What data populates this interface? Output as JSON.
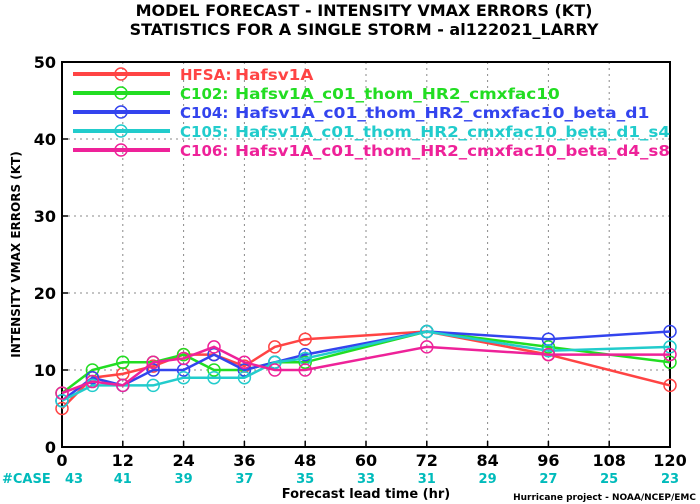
{
  "title_line1": "MODEL FORECAST - INTENSITY VMAX ERRORS (KT)",
  "title_line2": "STATISTICS FOR A SINGLE STORM - al122021_LARRY",
  "credit": "Hurricane project - NOAA/NCEP/EMC",
  "case_label": "#CASE",
  "case_color": "#00bbbb",
  "chart_data": {
    "type": "line",
    "xlabel": "Forecast lead time (hr)",
    "ylabel": "INTENSITY VMAX ERRORS (KT)",
    "xlim": [
      0,
      120
    ],
    "ylim": [
      0,
      50
    ],
    "xticks": [
      "0",
      "12",
      "24",
      "36",
      "48",
      "60",
      "72",
      "84",
      "96",
      "108",
      "120"
    ],
    "yticks": [
      "0",
      "10",
      "20",
      "30",
      "40",
      "50"
    ],
    "grid": true,
    "legend_position": "top-left",
    "case_x": [
      0,
      12,
      24,
      36,
      48,
      60,
      72,
      84,
      96,
      108,
      120
    ],
    "cases": [
      "43",
      "41",
      "39",
      "37",
      "35",
      "33",
      "31",
      "29",
      "27",
      "25",
      "23"
    ],
    "series": [
      {
        "label": "HFSA:",
        "desc": "Hafsv1A",
        "color": "#ff4444",
        "points": [
          [
            0,
            5
          ],
          [
            6,
            9
          ],
          [
            12,
            9.5
          ],
          [
            18,
            10.5
          ],
          [
            24,
            12
          ],
          [
            30,
            12
          ],
          [
            36,
            10.5
          ],
          [
            42,
            13
          ],
          [
            48,
            14
          ],
          [
            72,
            15
          ],
          [
            96,
            12
          ],
          [
            120,
            8
          ]
        ]
      },
      {
        "label": "C102:",
        "desc": "Hafsv1A_c01_thom_HR2_cmxfac10",
        "color": "#22dd22",
        "points": [
          [
            0,
            7
          ],
          [
            6,
            10
          ],
          [
            12,
            11
          ],
          [
            18,
            11
          ],
          [
            24,
            12
          ],
          [
            30,
            10
          ],
          [
            36,
            10
          ],
          [
            42,
            11
          ],
          [
            48,
            11
          ],
          [
            72,
            15
          ],
          [
            96,
            13
          ],
          [
            120,
            11
          ]
        ]
      },
      {
        "label": "C104:",
        "desc": "Hafsv1A_c01_thom_HR2_cmxfac10_beta_d1",
        "color": "#3344ee",
        "points": [
          [
            0,
            6
          ],
          [
            6,
            9
          ],
          [
            12,
            8
          ],
          [
            18,
            10
          ],
          [
            24,
            10
          ],
          [
            30,
            12
          ],
          [
            36,
            10
          ],
          [
            42,
            11
          ],
          [
            48,
            12
          ],
          [
            72,
            15
          ],
          [
            96,
            14
          ],
          [
            120,
            15
          ]
        ]
      },
      {
        "label": "C105:",
        "desc": "Hafsv1A_c01_thom_HR2_cmxfac10_beta_d1_s4",
        "color": "#22cccc",
        "points": [
          [
            0,
            6
          ],
          [
            6,
            8
          ],
          [
            12,
            8
          ],
          [
            18,
            8
          ],
          [
            24,
            9
          ],
          [
            30,
            9
          ],
          [
            36,
            9
          ],
          [
            42,
            11
          ],
          [
            48,
            11.5
          ],
          [
            72,
            15
          ],
          [
            96,
            12.5
          ],
          [
            120,
            13
          ]
        ]
      },
      {
        "label": "C106:",
        "desc": "Hafsv1A_c01_thom_HR2_cmxfac10_beta_d4_s8",
        "color": "#ee2299",
        "points": [
          [
            0,
            7
          ],
          [
            6,
            8.5
          ],
          [
            12,
            8
          ],
          [
            18,
            11
          ],
          [
            24,
            11.5
          ],
          [
            30,
            13
          ],
          [
            36,
            11
          ],
          [
            42,
            10
          ],
          [
            48,
            10
          ],
          [
            72,
            13
          ],
          [
            96,
            12
          ],
          [
            120,
            12
          ]
        ]
      }
    ]
  }
}
